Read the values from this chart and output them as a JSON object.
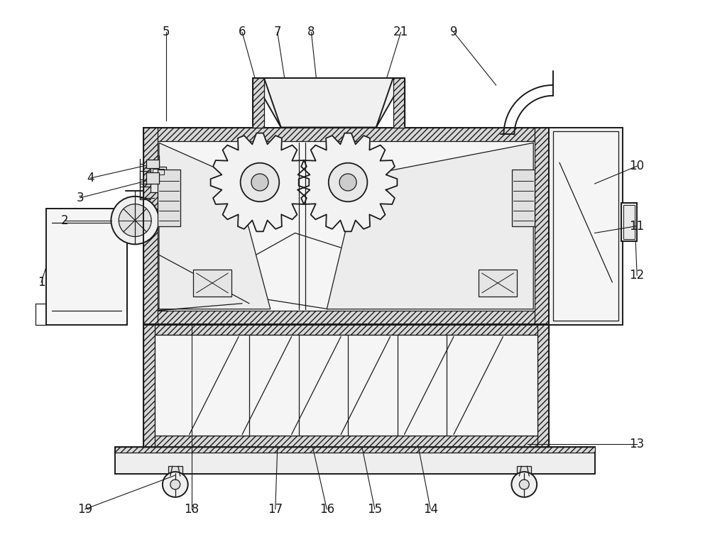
{
  "bg_color": "#ffffff",
  "lc": "#1a1a1a",
  "lw_main": 1.4,
  "lw_thin": 0.9,
  "font_size": 12,
  "hatch_fill": "#d8d8d8",
  "inner_fill": "#f5f5f5"
}
